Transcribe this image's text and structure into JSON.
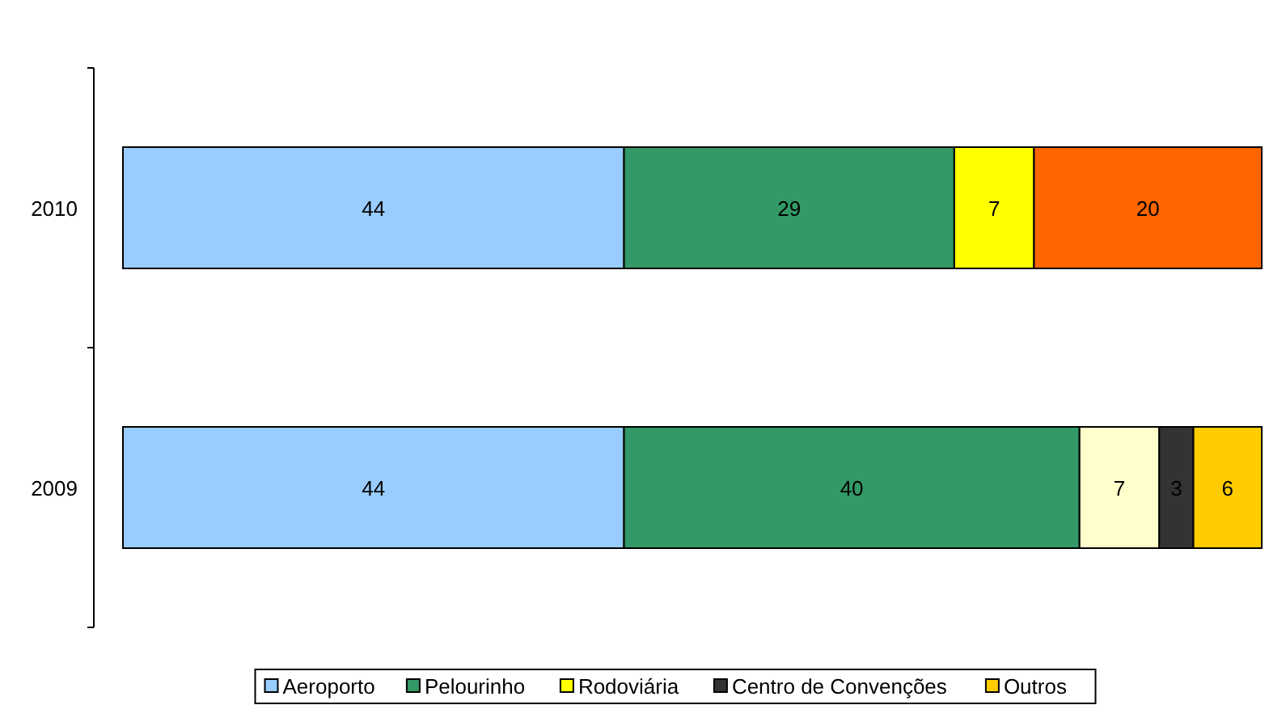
{
  "chart_data": {
    "type": "bar",
    "orientation": "horizontal",
    "stacked": true,
    "data_labels": true,
    "legend": "bottom",
    "grid": false,
    "categories": [
      "2010",
      "2009"
    ],
    "series": [
      {
        "name": "Aeroporto",
        "color": "#99ccff",
        "values": [
          44,
          44
        ]
      },
      {
        "name": "Pelourinho",
        "color": "#339966",
        "values": [
          29,
          40
        ]
      },
      {
        "name": "Rodoviária",
        "color": "#ffff00",
        "colors": [
          "#ffff00",
          "#ffffcc"
        ],
        "values": [
          7,
          7
        ]
      },
      {
        "name": "Centro de Convenções",
        "color": "#333333",
        "values": [
          null,
          3
        ]
      },
      {
        "name": "Outros",
        "color": "#ffcc00",
        "colors": [
          "#ff6600",
          "#ffcc00"
        ],
        "values": [
          20,
          6
        ]
      }
    ]
  }
}
